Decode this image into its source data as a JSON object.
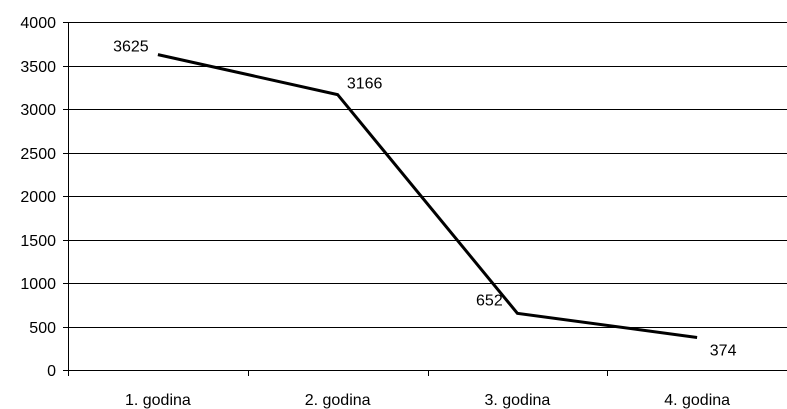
{
  "chart_data": {
    "type": "line",
    "title": "",
    "xlabel": "",
    "ylabel": "",
    "categories": [
      "1. godina",
      "2. godina",
      "3. godina",
      "4. godina"
    ],
    "series": [
      {
        "values": [
          3625,
          3166,
          652,
          374
        ],
        "color": "#000000"
      }
    ],
    "data_labels": [
      "3625",
      "3166",
      "652",
      "374"
    ],
    "ylim": [
      0,
      4000
    ],
    "yticks": [
      0,
      500,
      1000,
      1500,
      2000,
      2500,
      3000,
      3500,
      4000
    ],
    "ytick_labels": [
      "0",
      "500",
      "1000",
      "1500",
      "2000",
      "2500",
      "3000",
      "3500",
      "4000"
    ],
    "grid": true,
    "legend": "none"
  }
}
